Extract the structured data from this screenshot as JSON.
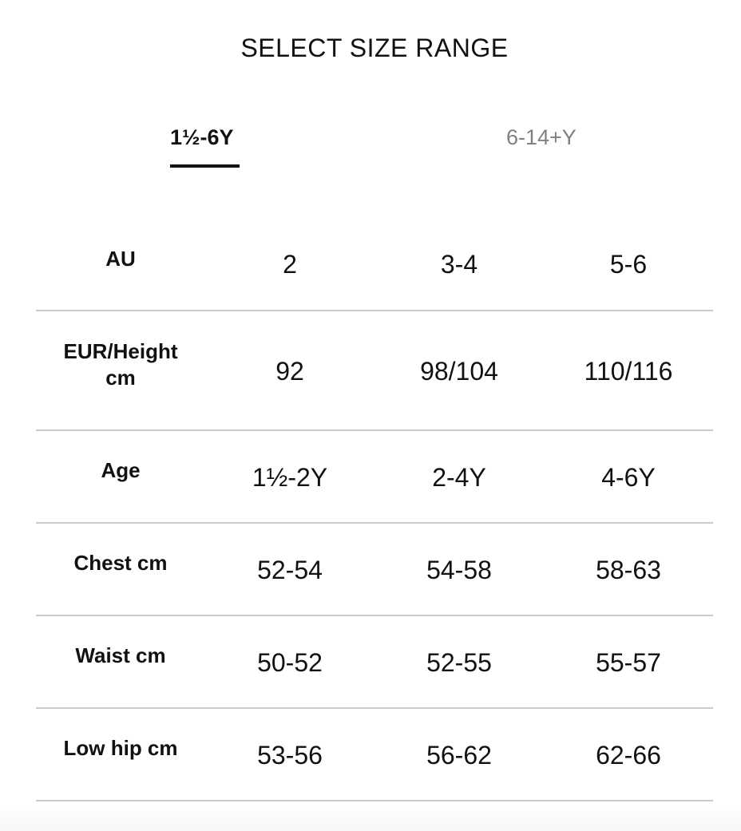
{
  "title": "SELECT SIZE RANGE",
  "tabs": [
    {
      "label": "1½-6Y",
      "active": true
    },
    {
      "label": "6-14+Y",
      "active": false
    }
  ],
  "table": {
    "rows": [
      {
        "label": "AU",
        "values": [
          "2",
          "3-4",
          "5-6"
        ]
      },
      {
        "label": "EUR/Height cm",
        "values": [
          "92",
          "98/104",
          "110/116"
        ]
      },
      {
        "label": "Age",
        "values": [
          "1½-2Y",
          "2-4Y",
          "4-6Y"
        ]
      },
      {
        "label": "Chest cm",
        "values": [
          "52-54",
          "54-58",
          "58-63"
        ]
      },
      {
        "label": "Waist cm",
        "values": [
          "50-52",
          "52-55",
          "55-57"
        ]
      },
      {
        "label": "Low hip cm",
        "values": [
          "53-56",
          "56-62",
          "62-66"
        ]
      }
    ]
  }
}
